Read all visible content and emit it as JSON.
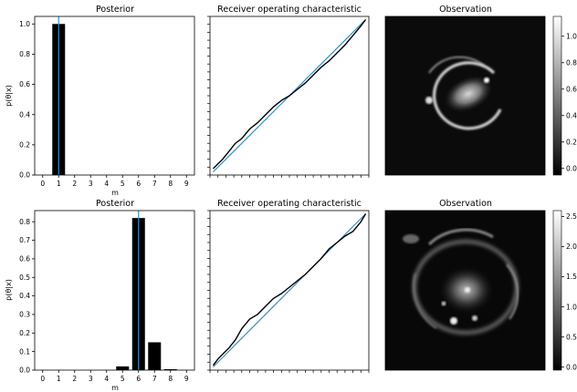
{
  "colors": {
    "bar": "#000000",
    "truth_line": "#3a8fc4",
    "diagonal": "#3a8fc4",
    "roc": "#000000"
  },
  "chart_data": [
    {
      "panel": "posterior-top",
      "type": "bar",
      "title": "Posterior",
      "xlabel": "m",
      "ylabel": "p(θ|x)",
      "categories": [
        "0",
        "1",
        "2",
        "3",
        "4",
        "5",
        "6",
        "7",
        "8",
        "9"
      ],
      "values": [
        0,
        1.0,
        0,
        0,
        0,
        0,
        0,
        0,
        0,
        0
      ],
      "truth_marker": 1,
      "xlim": [
        -0.5,
        9.5
      ],
      "ylim": [
        0,
        1.05
      ],
      "yticks": [
        "0.0",
        "0.2",
        "0.4",
        "0.6",
        "0.8",
        "1.0"
      ],
      "ytick_values": [
        0,
        0.2,
        0.4,
        0.6,
        0.8,
        1.0
      ]
    },
    {
      "panel": "roc-top",
      "type": "line",
      "title": "Receiver operating characteristic",
      "xlim": [
        0,
        1
      ],
      "ylim": [
        0,
        1
      ],
      "series": [
        {
          "x": [
            0.02,
            0.05,
            0.08,
            0.12,
            0.16,
            0.2,
            0.25,
            0.3,
            0.35,
            0.4,
            0.45,
            0.5,
            0.55,
            0.6,
            0.65,
            0.7,
            0.75,
            0.8,
            0.85,
            0.9,
            0.95,
            0.98
          ],
          "y": [
            0.04,
            0.07,
            0.1,
            0.15,
            0.2,
            0.23,
            0.29,
            0.33,
            0.38,
            0.43,
            0.47,
            0.5,
            0.54,
            0.58,
            0.63,
            0.68,
            0.72,
            0.77,
            0.82,
            0.88,
            0.94,
            0.98
          ]
        }
      ]
    },
    {
      "panel": "obs-top",
      "type": "heatmap",
      "title": "Observation",
      "colorbar_ticks": [
        "0.0",
        "0.2",
        "0.4",
        "0.6",
        "0.8",
        "1.0"
      ],
      "colorbar_tick_values": [
        0,
        0.2,
        0.4,
        0.6,
        0.8,
        1.0
      ],
      "colorbar_range": [
        -0.05,
        1.15
      ]
    },
    {
      "panel": "posterior-bottom",
      "type": "bar",
      "title": "Posterior",
      "xlabel": "m",
      "ylabel": "p(θ|x)",
      "categories": [
        "0",
        "1",
        "2",
        "3",
        "4",
        "5",
        "6",
        "7",
        "8",
        "9"
      ],
      "values": [
        0,
        0,
        0,
        0,
        0,
        0.02,
        0.82,
        0.15,
        0.005,
        0
      ],
      "truth_marker": 6,
      "xlim": [
        -0.5,
        9.5
      ],
      "ylim": [
        0,
        0.86
      ],
      "yticks": [
        "0.0",
        "0.1",
        "0.2",
        "0.3",
        "0.4",
        "0.5",
        "0.6",
        "0.7",
        "0.8"
      ],
      "ytick_values": [
        0,
        0.1,
        0.2,
        0.3,
        0.4,
        0.5,
        0.6,
        0.7,
        0.8
      ]
    },
    {
      "panel": "roc-bottom",
      "type": "line",
      "title": "Receiver operating characteristic",
      "xlim": [
        0,
        1
      ],
      "ylim": [
        0,
        1
      ],
      "series": [
        {
          "x": [
            0.02,
            0.05,
            0.08,
            0.12,
            0.16,
            0.2,
            0.25,
            0.3,
            0.35,
            0.4,
            0.45,
            0.5,
            0.55,
            0.6,
            0.65,
            0.7,
            0.75,
            0.8,
            0.85,
            0.9,
            0.95,
            0.98
          ],
          "y": [
            0.03,
            0.07,
            0.1,
            0.14,
            0.19,
            0.26,
            0.32,
            0.35,
            0.4,
            0.45,
            0.48,
            0.52,
            0.56,
            0.6,
            0.65,
            0.7,
            0.76,
            0.8,
            0.84,
            0.87,
            0.93,
            0.98
          ]
        }
      ]
    },
    {
      "panel": "obs-bottom",
      "type": "heatmap",
      "title": "Observation",
      "colorbar_ticks": [
        "0.0",
        "0.5",
        "1.0",
        "1.5",
        "2.0",
        "2.5"
      ],
      "colorbar_tick_values": [
        0,
        0.5,
        1.0,
        1.5,
        2.0,
        2.5
      ],
      "colorbar_range": [
        -0.05,
        2.6
      ]
    }
  ]
}
